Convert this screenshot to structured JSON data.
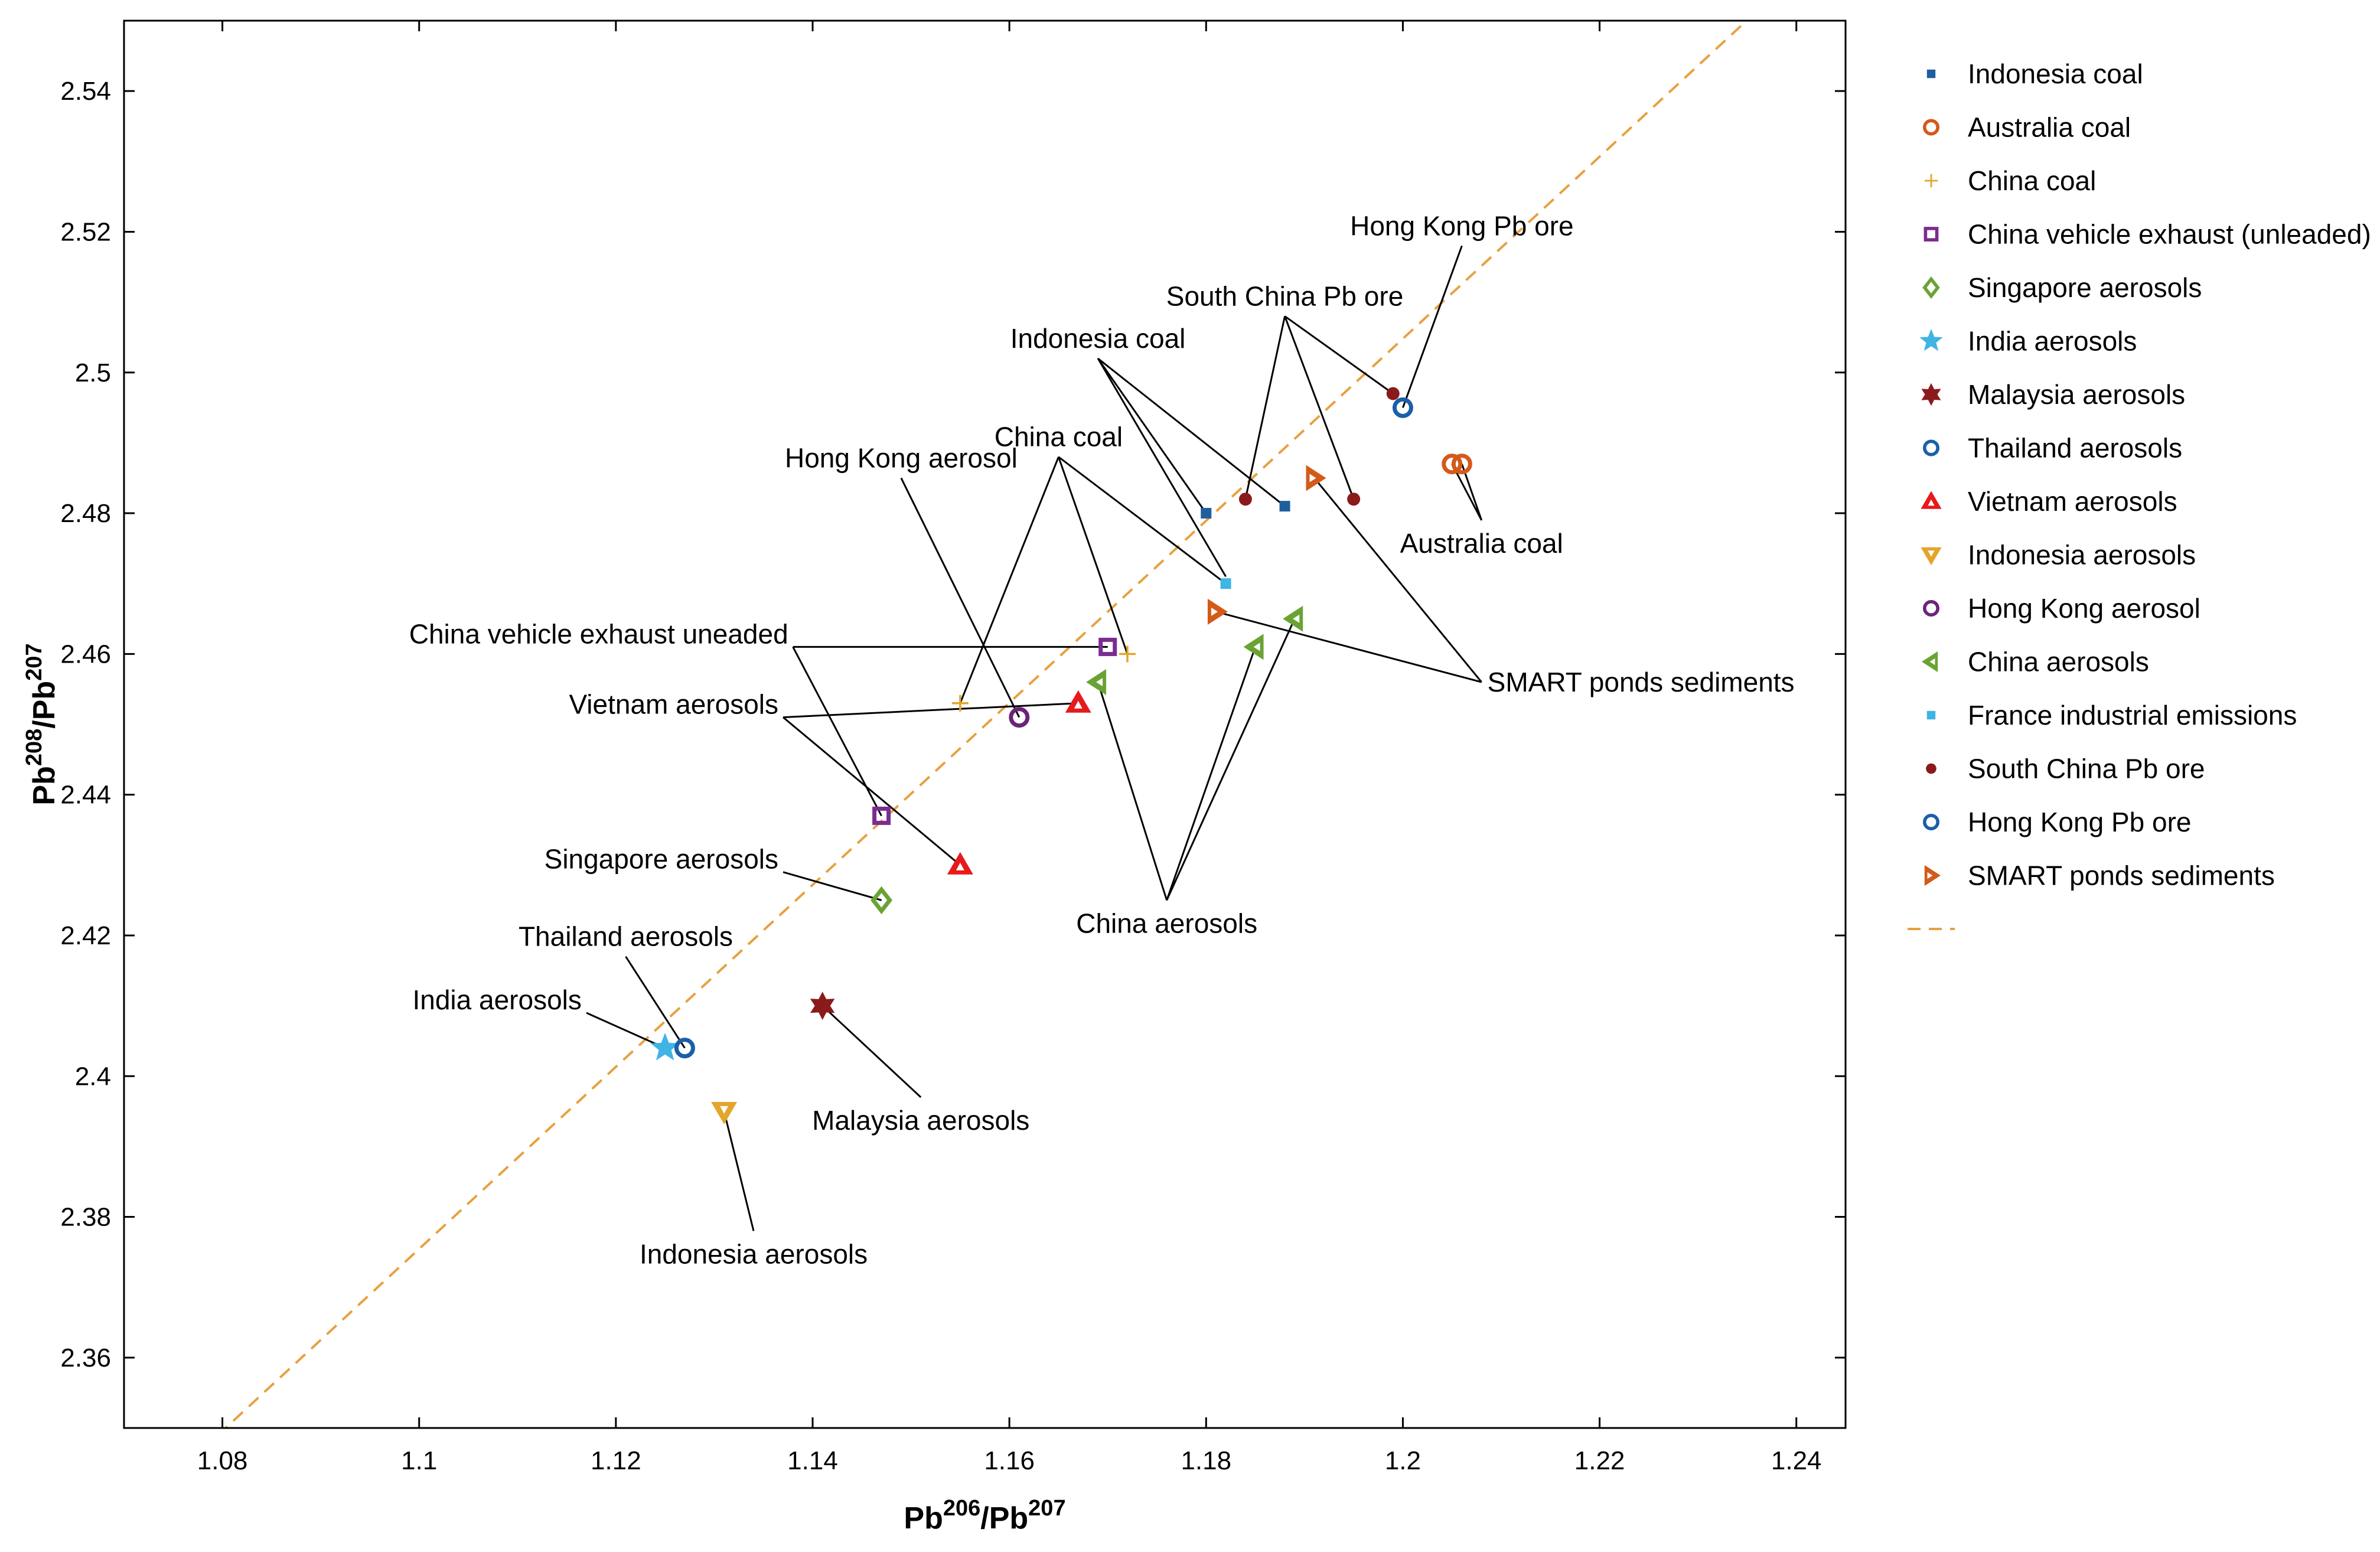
{
  "chart_data": {
    "type": "scatter",
    "title": "",
    "xlabel": {
      "base": "Pb",
      "sup1": "206",
      "mid": "/Pb",
      "sup2": "207"
    },
    "ylabel": {
      "base": "Pb",
      "sup1": "208",
      "mid": "/Pb",
      "sup2": "207"
    },
    "xlim": [
      1.07,
      1.245
    ],
    "ylim": [
      2.35,
      2.55
    ],
    "xticks": [
      "1.08",
      "1.1",
      "1.12",
      "1.14",
      "1.16",
      "1.18",
      "1.2",
      "1.22",
      "1.24"
    ],
    "yticks": [
      "2.36",
      "2.38",
      "2.4",
      "2.42",
      "2.44",
      "2.46",
      "2.48",
      "2.5",
      "2.52",
      "2.54"
    ],
    "legend_position": "right-outside",
    "series": [
      {
        "name": "Indonesia coal",
        "marker": "small-square",
        "color": "#1f5f9f",
        "points": [
          [
            1.18,
            2.48
          ],
          [
            1.188,
            2.481
          ]
        ]
      },
      {
        "name": "Australia coal",
        "marker": "circle",
        "color": "#d45a1a",
        "points": [
          [
            1.205,
            2.487
          ],
          [
            1.206,
            2.487
          ]
        ]
      },
      {
        "name": "China coal",
        "marker": "plus",
        "color": "#e3a52a",
        "points": [
          [
            1.155,
            2.453
          ],
          [
            1.172,
            2.46
          ]
        ]
      },
      {
        "name": "China vehicle exhaust (unleaded)",
        "marker": "square",
        "color": "#7b2c91",
        "points": [
          [
            1.147,
            2.437
          ],
          [
            1.17,
            2.461
          ]
        ]
      },
      {
        "name": "Singapore aerosols",
        "marker": "diamond",
        "color": "#6aa334",
        "points": [
          [
            1.147,
            2.425
          ]
        ]
      },
      {
        "name": "India aerosols",
        "marker": "star",
        "color": "#3fb4e5",
        "points": [
          [
            1.125,
            2.404
          ]
        ]
      },
      {
        "name": "Malaysia aerosols",
        "marker": "hexagram",
        "color": "#8b1a1a",
        "points": [
          [
            1.141,
            2.41
          ]
        ]
      },
      {
        "name": "Thailand aerosols",
        "marker": "circle",
        "color": "#1a5fa8",
        "points": [
          [
            1.127,
            2.404
          ]
        ]
      },
      {
        "name": "Vietnam aerosols",
        "marker": "triangle-up",
        "color": "#e8191b",
        "points": [
          [
            1.155,
            2.43
          ],
          [
            1.167,
            2.453
          ]
        ]
      },
      {
        "name": "Indonesia aerosols",
        "marker": "triangle-down",
        "color": "#e3a52a",
        "points": [
          [
            1.131,
            2.395
          ]
        ]
      },
      {
        "name": "Hong Kong aerosol",
        "marker": "circle",
        "color": "#6b2478",
        "points": [
          [
            1.161,
            2.451
          ]
        ]
      },
      {
        "name": "China aerosols",
        "marker": "triangle-left",
        "color": "#6aa334",
        "points": [
          [
            1.169,
            2.456
          ],
          [
            1.185,
            2.461
          ],
          [
            1.189,
            2.465
          ]
        ]
      },
      {
        "name": "France industrial emissions",
        "marker": "small-square",
        "color": "#3fb4e5",
        "points": [
          [
            1.182,
            2.47
          ]
        ]
      },
      {
        "name": "South China Pb ore",
        "marker": "dot",
        "color": "#8b1a1a",
        "points": [
          [
            1.184,
            2.482
          ],
          [
            1.195,
            2.482
          ],
          [
            1.199,
            2.497
          ]
        ]
      },
      {
        "name": "Hong Kong Pb ore",
        "marker": "circle",
        "color": "#1a5fa8",
        "points": [
          [
            1.2,
            2.495
          ]
        ]
      },
      {
        "name": "SMART ponds sediments",
        "marker": "triangle-right",
        "color": "#d45a1a",
        "points": [
          [
            1.181,
            2.466
          ],
          [
            1.191,
            2.485
          ]
        ]
      }
    ],
    "reference_line": {
      "style": "dashed",
      "color": "#e8a040",
      "slope": 1.2935,
      "intercept": 0.9526,
      "legend_label": ""
    },
    "annotations": [
      {
        "text": "Hong Kong Pb ore",
        "anchor": [
          1.206,
          2.518
        ],
        "targets": [
          [
            1.2,
            2.495
          ]
        ]
      },
      {
        "text": "South China Pb ore",
        "anchor": [
          1.188,
          2.508
        ],
        "targets": [
          [
            1.184,
            2.482
          ],
          [
            1.199,
            2.497
          ],
          [
            1.195,
            2.482
          ]
        ]
      },
      {
        "text": "Indonesia coal",
        "anchor": [
          1.169,
          2.502
        ],
        "targets": [
          [
            1.18,
            2.48
          ],
          [
            1.188,
            2.481
          ],
          [
            1.182,
            2.471
          ]
        ]
      },
      {
        "text": "China coal",
        "anchor": [
          1.165,
          2.488
        ],
        "targets": [
          [
            1.155,
            2.453
          ],
          [
            1.172,
            2.46
          ],
          [
            1.182,
            2.47
          ]
        ]
      },
      {
        "text": "Hong Kong aerosol",
        "anchor": [
          1.149,
          2.485
        ],
        "targets": [
          [
            1.161,
            2.451
          ]
        ]
      },
      {
        "text": "China vehicle exhaust uneaded",
        "anchor": [
          1.138,
          2.461
        ],
        "targets": [
          [
            1.147,
            2.437
          ],
          [
            1.17,
            2.461
          ]
        ]
      },
      {
        "text": "Vietnam aerosols",
        "anchor": [
          1.137,
          2.451
        ],
        "targets": [
          [
            1.155,
            2.43
          ],
          [
            1.167,
            2.453
          ]
        ]
      },
      {
        "text": "Singapore aerosols",
        "anchor": [
          1.137,
          2.429
        ],
        "targets": [
          [
            1.147,
            2.425
          ]
        ]
      },
      {
        "text": "Thailand aerosols",
        "anchor": [
          1.121,
          2.417
        ],
        "targets": [
          [
            1.127,
            2.404
          ]
        ]
      },
      {
        "text": "India aerosols",
        "anchor": [
          1.117,
          2.409
        ],
        "targets": [
          [
            1.125,
            2.404
          ]
        ]
      },
      {
        "text": "Malaysia aerosols",
        "anchor": [
          1.151,
          2.397
        ],
        "targets": [
          [
            1.141,
            2.41
          ]
        ]
      },
      {
        "text": "Indonesia aerosols",
        "anchor": [
          1.134,
          2.378
        ],
        "targets": [
          [
            1.131,
            2.395
          ]
        ]
      },
      {
        "text": "China aerosols",
        "anchor": [
          1.176,
          2.425
        ],
        "targets": [
          [
            1.169,
            2.456
          ],
          [
            1.185,
            2.461
          ],
          [
            1.189,
            2.465
          ]
        ]
      },
      {
        "text": "SMART ponds sediments",
        "anchor": [
          1.208,
          2.456
        ],
        "targets": [
          [
            1.181,
            2.466
          ],
          [
            1.191,
            2.485
          ]
        ]
      },
      {
        "text": "Australia coal",
        "anchor": [
          1.208,
          2.479
        ],
        "targets": [
          [
            1.205,
            2.487
          ],
          [
            1.206,
            2.487
          ]
        ]
      }
    ]
  }
}
